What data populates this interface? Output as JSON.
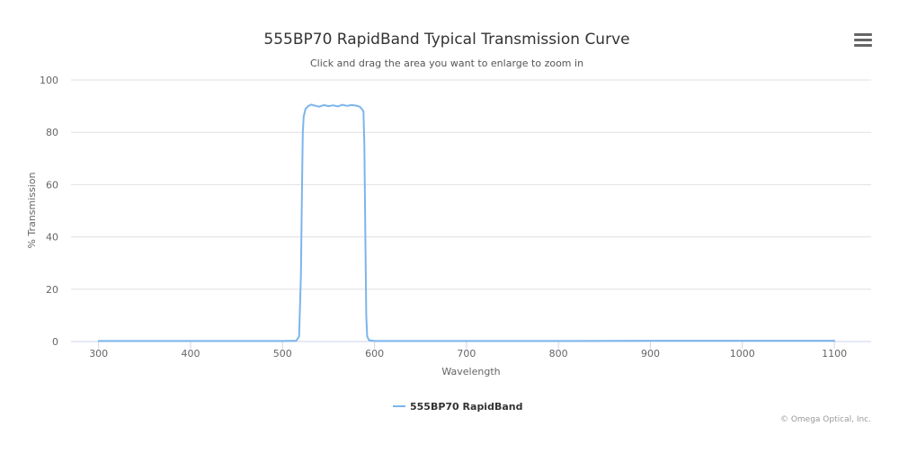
{
  "chart_data": {
    "type": "line",
    "title": "555BP70 RapidBand Typical Transmission Curve",
    "subtitle": "Click and drag the area you want to enlarge to zoom in",
    "xlabel": "Wavelength",
    "ylabel": "% Transmission",
    "xlim": [
      270,
      1140
    ],
    "ylim": [
      0,
      100
    ],
    "x_ticks": [
      300,
      400,
      500,
      600,
      700,
      800,
      900,
      1000,
      1100
    ],
    "y_ticks": [
      0,
      20,
      40,
      60,
      80,
      100
    ],
    "grid": true,
    "legend_position": "bottom-center",
    "series": [
      {
        "name": "555BP70 RapidBand",
        "color": "#7cb5ec",
        "x": [
          300,
          400,
          500,
          515,
          518,
          520,
          521,
          522,
          523,
          525,
          528,
          531,
          535,
          540,
          545,
          550,
          555,
          560,
          565,
          570,
          575,
          580,
          584,
          586,
          588,
          589,
          590,
          591,
          592,
          594,
          600,
          700,
          800,
          900,
          1000,
          1100
        ],
        "y": [
          0.2,
          0.2,
          0.2,
          0.3,
          2,
          25,
          55,
          80,
          86,
          89,
          90,
          90.6,
          90.2,
          89.8,
          90.4,
          90,
          90.3,
          89.9,
          90.5,
          90.1,
          90.4,
          90.2,
          89.8,
          89,
          88,
          75,
          40,
          10,
          2,
          0.5,
          0.2,
          0.2,
          0.2,
          0.3,
          0.3,
          0.3
        ]
      }
    ]
  },
  "credits": "© Omega Optical, Inc.",
  "menu_icon": "hamburger-menu-icon"
}
